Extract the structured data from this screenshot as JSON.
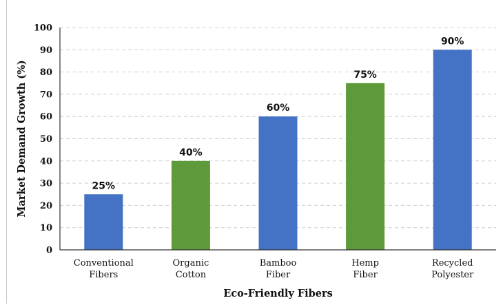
{
  "chart_data": {
    "type": "bar",
    "title": "",
    "xlabel": "Eco-Friendly Fibers",
    "ylabel": "Market Demand Growth (%)",
    "ylim": [
      0,
      100
    ],
    "yticks": [
      0,
      10,
      20,
      30,
      40,
      50,
      60,
      70,
      80,
      90,
      100
    ],
    "grid": "horizontal dashed",
    "categories": [
      [
        "Conventional",
        "Fibers"
      ],
      [
        "Organic",
        "Cotton"
      ],
      [
        "Bamboo",
        "Fiber"
      ],
      [
        "Hemp",
        "Fiber"
      ],
      [
        "Recycled",
        "Polyester"
      ]
    ],
    "values": [
      25,
      40,
      60,
      75,
      90
    ],
    "data_labels": [
      "25%",
      "40%",
      "60%",
      "75%",
      "90%"
    ],
    "bar_colors": [
      "#4472c4",
      "#5e9a3a",
      "#4472c4",
      "#5e9a3a",
      "#4472c4"
    ]
  }
}
